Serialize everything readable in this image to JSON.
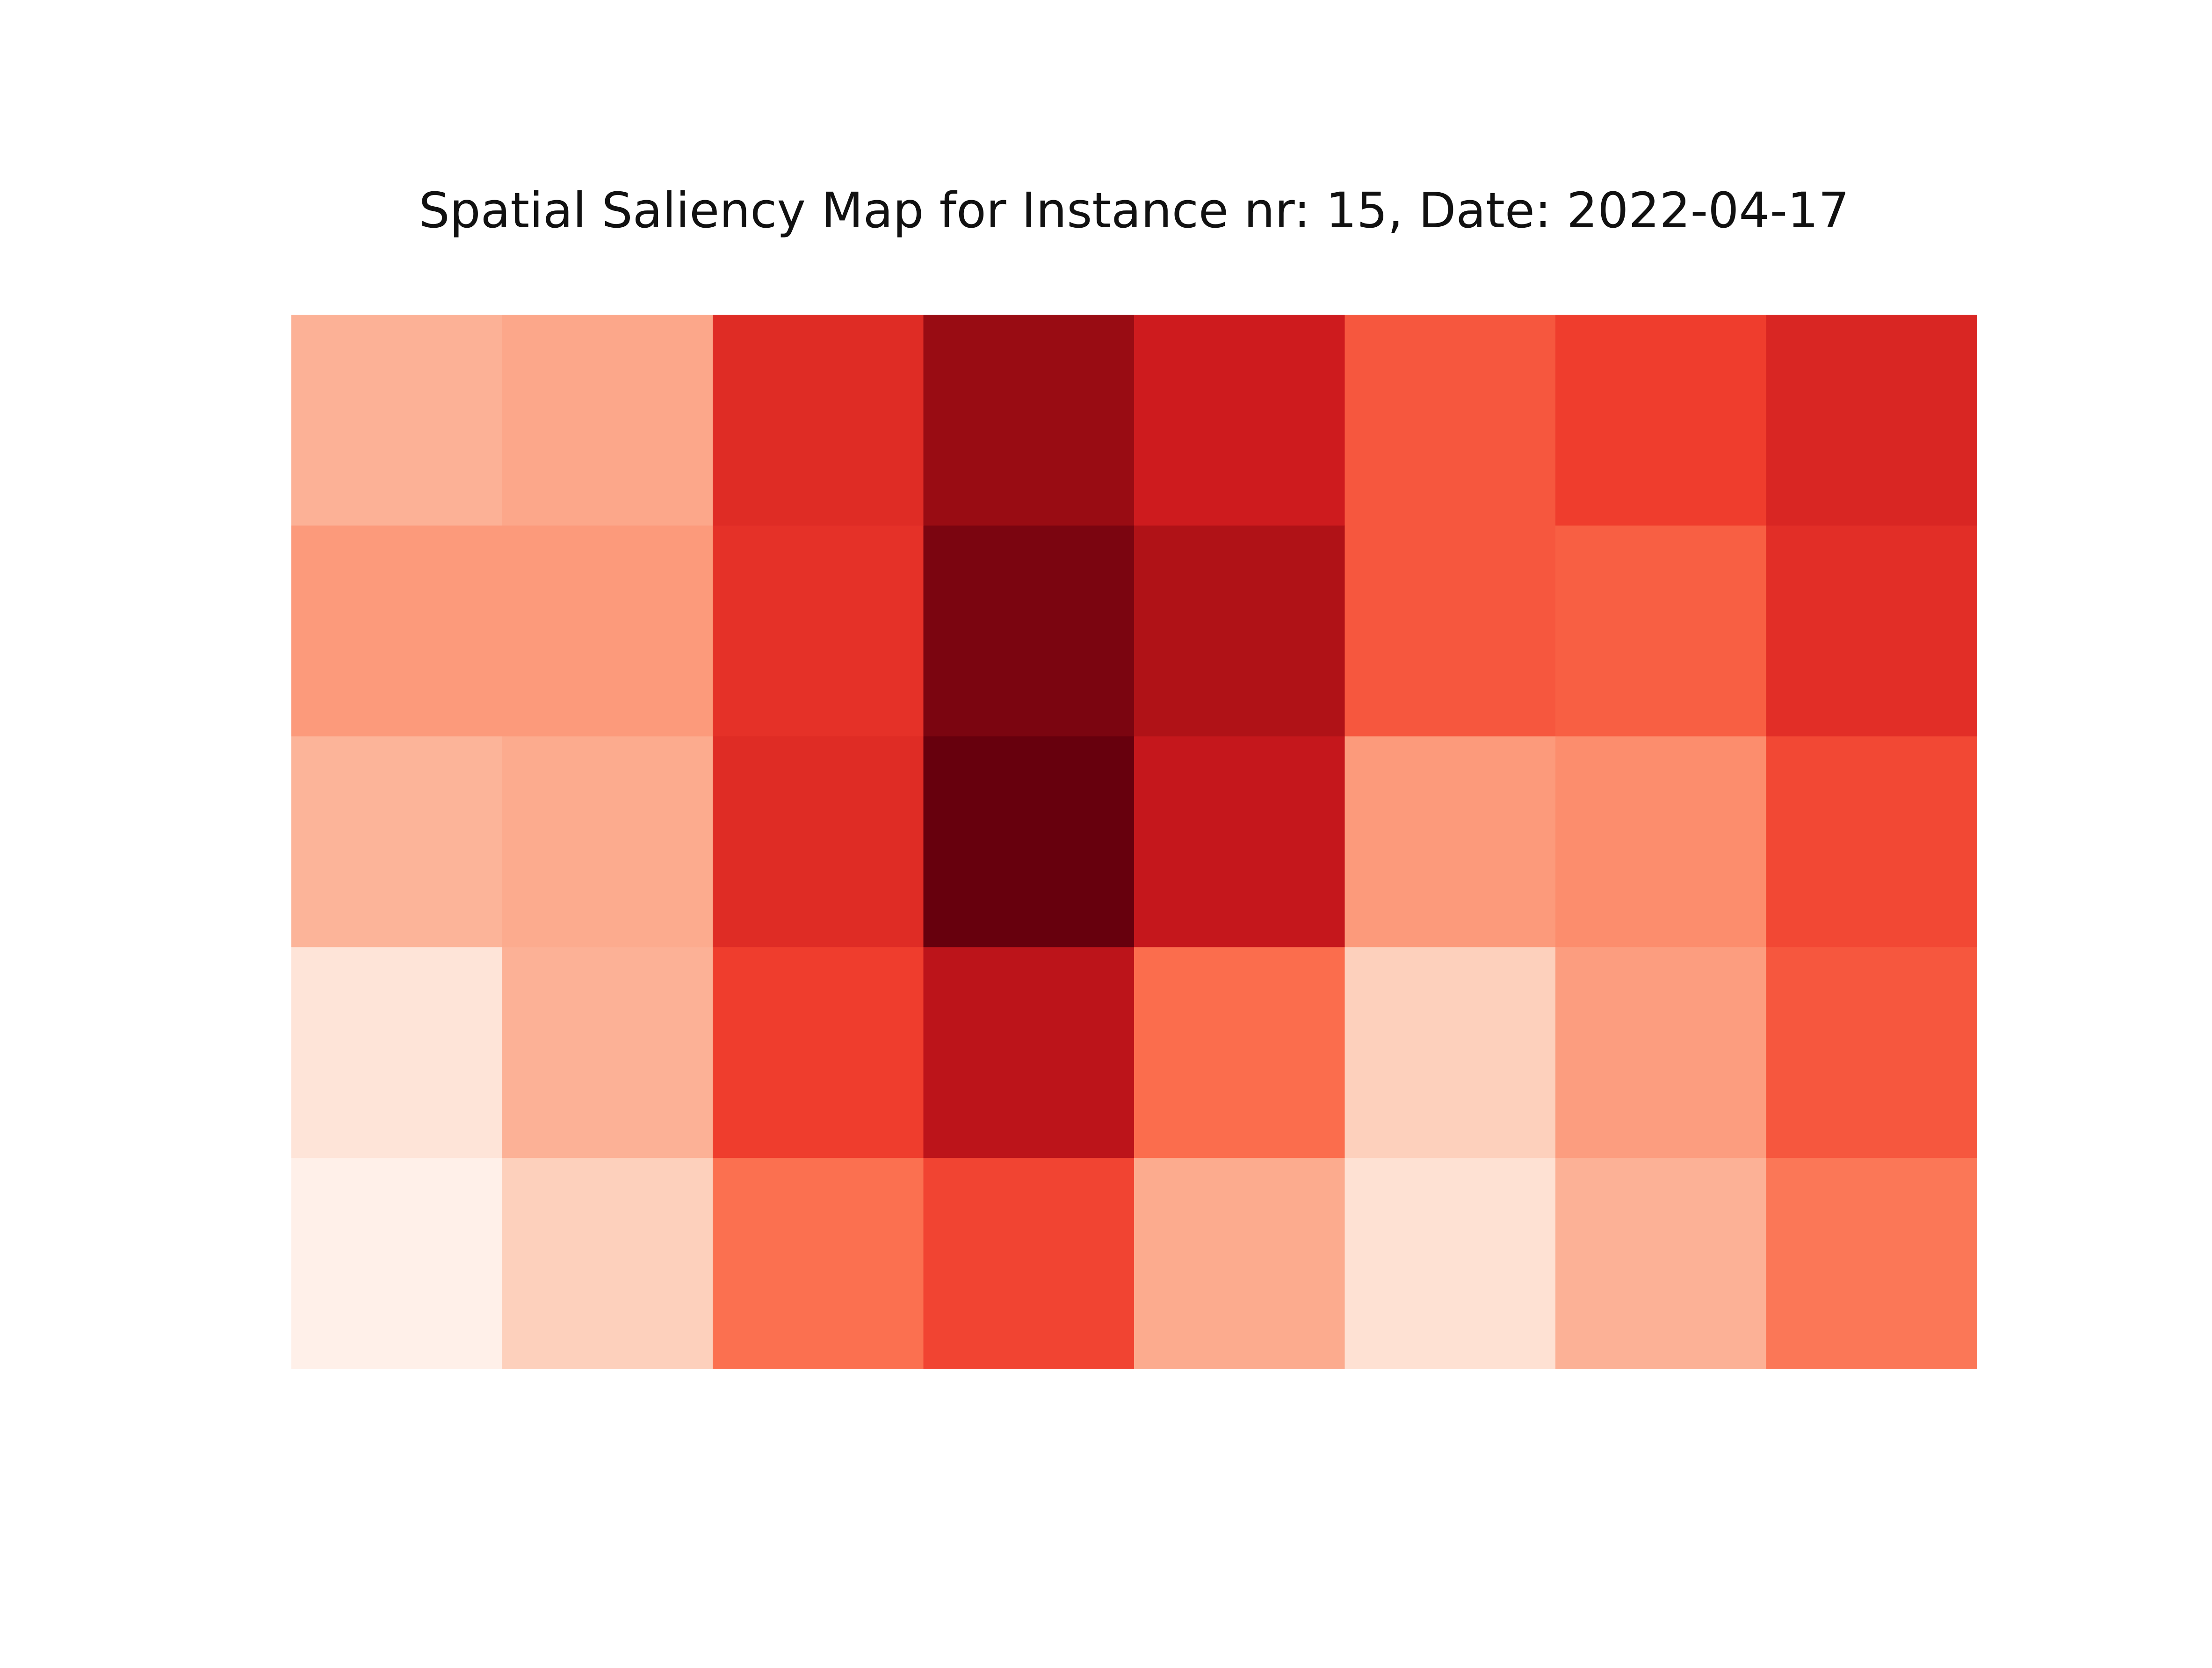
{
  "chart_data": {
    "type": "heatmap",
    "title": "Spatial Saliency Map for Instance nr: 15, Date: 2022-04-17",
    "xlabel": "",
    "ylabel": "",
    "axes_visible": false,
    "grid": false,
    "colormap": "Reds",
    "value_range": [
      0,
      1
    ],
    "rows": 5,
    "cols": 8,
    "values": [
      [
        0.28,
        0.31,
        0.68,
        0.9,
        0.74,
        0.55,
        0.62,
        0.7
      ],
      [
        0.35,
        0.35,
        0.66,
        0.96,
        0.84,
        0.55,
        0.53,
        0.67
      ],
      [
        0.27,
        0.3,
        0.68,
        1.0,
        0.77,
        0.35,
        0.39,
        0.59
      ],
      [
        0.1,
        0.28,
        0.62,
        0.8,
        0.49,
        0.18,
        0.34,
        0.55
      ],
      [
        0.03,
        0.18,
        0.48,
        0.6,
        0.3,
        0.12,
        0.28,
        0.46
      ]
    ]
  }
}
